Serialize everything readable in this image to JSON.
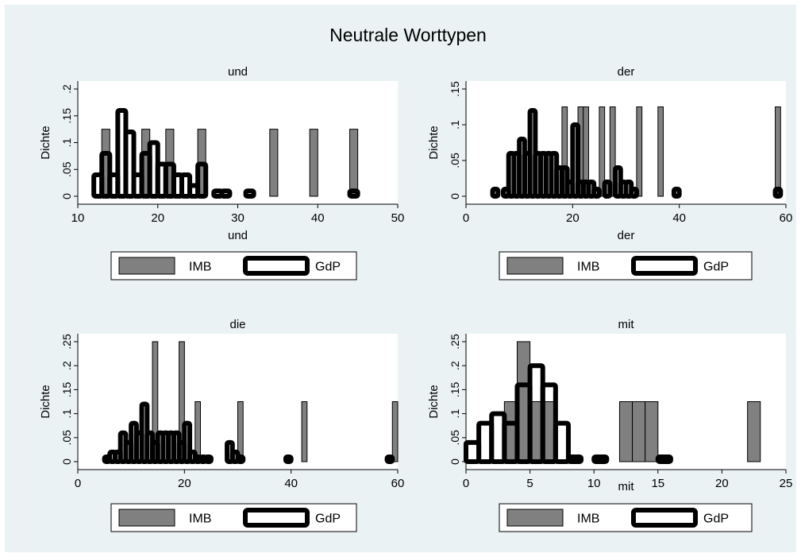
{
  "figure": {
    "title": "Neutrale Worttypen",
    "legend_labels": [
      "IMB",
      "GdP"
    ],
    "colors": {
      "background": "#eaf2f3",
      "plot_bg": "#ffffff",
      "imb_fill": "#808080",
      "gdp_stroke": "#000000"
    }
  },
  "chart_data": [
    {
      "type": "bar",
      "title": "und",
      "xlabel": "und",
      "ylabel": "Dichte",
      "xlim": [
        10,
        50
      ],
      "ylim": [
        0,
        0.2
      ],
      "x_ticks": [
        10,
        20,
        30,
        40,
        50
      ],
      "y_ticks": [
        0,
        0.05,
        0.1,
        0.15,
        0.2
      ],
      "x_tick_labels": [
        "10",
        "20",
        "30",
        "40",
        "50"
      ],
      "y_tick_labels": [
        "0",
        ".05",
        ".1",
        ".15",
        ".2"
      ],
      "bin_width": 1,
      "series": [
        {
          "name": "IMB",
          "x": [
            13.5,
            18.5,
            21.5,
            25.5,
            34.5,
            39.5,
            44.5
          ],
          "values": [
            0.125,
            0.125,
            0.125,
            0.125,
            0.125,
            0.125,
            0.125
          ]
        },
        {
          "name": "GdP",
          "x": [
            12.5,
            13.5,
            14.5,
            15.5,
            16.5,
            17.5,
            18.5,
            19.5,
            20.5,
            21.5,
            22.5,
            23.5,
            24.5,
            25.5,
            27.5,
            28.5,
            31.5,
            44.5
          ],
          "values": [
            0.04,
            0.08,
            0.04,
            0.16,
            0.12,
            0.04,
            0.08,
            0.1,
            0.06,
            0.06,
            0.04,
            0.04,
            0.02,
            0.06,
            0.01,
            0.01,
            0.01,
            0.01
          ]
        }
      ]
    },
    {
      "type": "bar",
      "title": "der",
      "xlabel": "der",
      "ylabel": "Dichte",
      "xlim": [
        0,
        60
      ],
      "ylim": [
        0,
        0.15
      ],
      "x_ticks": [
        0,
        20,
        40,
        60
      ],
      "y_ticks": [
        0,
        0.05,
        0.1,
        0.15
      ],
      "x_tick_labels": [
        "0",
        "20",
        "40",
        "60"
      ],
      "y_tick_labels": [
        "0",
        ".05",
        ".1",
        ".15"
      ],
      "bin_width": 1,
      "series": [
        {
          "name": "IMB",
          "x": [
            18.5,
            21.5,
            22.5,
            25.5,
            27.5,
            32.5,
            36.5,
            58.5
          ],
          "values": [
            0.125,
            0.125,
            0.125,
            0.125,
            0.125,
            0.125,
            0.125,
            0.125
          ]
        },
        {
          "name": "GdP",
          "x": [
            5.5,
            7.5,
            8.5,
            9.5,
            10.5,
            11.5,
            12.5,
            13.5,
            14.5,
            15.5,
            16.5,
            17.5,
            18.5,
            19.5,
            20.5,
            21.5,
            22.5,
            23.5,
            24.5,
            26.5,
            28.5,
            29.5,
            30.5,
            31.5,
            39.5,
            58.5
          ],
          "values": [
            0.01,
            0.01,
            0.06,
            0.06,
            0.08,
            0.06,
            0.12,
            0.06,
            0.06,
            0.06,
            0.06,
            0.04,
            0.04,
            0.02,
            0.1,
            0.02,
            0.02,
            0.02,
            0.01,
            0.02,
            0.04,
            0.02,
            0.02,
            0.01,
            0.01,
            0.01
          ]
        }
      ]
    },
    {
      "type": "bar",
      "title": "die",
      "xlabel": "",
      "ylabel": "Dichte",
      "xlim": [
        0,
        60
      ],
      "ylim": [
        0,
        0.25
      ],
      "x_ticks": [
        0,
        20,
        40,
        60
      ],
      "y_ticks": [
        0,
        0.05,
        0.1,
        0.15,
        0.2,
        0.25
      ],
      "x_tick_labels": [
        "0",
        "20",
        "40",
        "60"
      ],
      "y_tick_labels": [
        "0",
        ".05",
        ".1",
        ".15",
        ".2",
        ".25"
      ],
      "bin_width": 1,
      "series": [
        {
          "name": "IMB",
          "x": [
            14.5,
            19.5,
            22.5,
            30.5,
            42.5,
            59.5
          ],
          "values": [
            0.25,
            0.25,
            0.125,
            0.125,
            0.125,
            0.125
          ]
        },
        {
          "name": "GdP",
          "x": [
            5.5,
            6.5,
            7.5,
            8.5,
            9.5,
            10.5,
            11.5,
            12.5,
            13.5,
            14.5,
            15.5,
            16.5,
            17.5,
            18.5,
            19.5,
            20.5,
            21.5,
            22.5,
            23.5,
            24.5,
            28.5,
            29.5,
            30.5,
            39.5,
            58.5
          ],
          "values": [
            0.01,
            0.02,
            0.02,
            0.06,
            0.04,
            0.08,
            0.06,
            0.12,
            0.06,
            0.04,
            0.06,
            0.06,
            0.06,
            0.06,
            0.04,
            0.08,
            0.02,
            0.01,
            0.01,
            0.01,
            0.04,
            0.02,
            0.01,
            0.01,
            0.01
          ]
        }
      ]
    },
    {
      "type": "bar",
      "title": "mit",
      "xlabel": "mit",
      "ylabel": "Dichte",
      "xlim": [
        0,
        25
      ],
      "ylim": [
        0,
        0.25
      ],
      "x_ticks": [
        0,
        5,
        10,
        15,
        20,
        25
      ],
      "y_ticks": [
        0,
        0.05,
        0.1,
        0.15,
        0.2,
        0.25
      ],
      "x_tick_labels": [
        "0",
        "5",
        "10",
        "15",
        "20",
        "25"
      ],
      "y_tick_labels": [
        "0",
        ".05",
        ".1",
        ".15",
        ".2",
        ".25"
      ],
      "bin_width": 1,
      "series": [
        {
          "name": "IMB",
          "x": [
            3.5,
            4.5,
            5.5,
            6.5,
            12.5,
            13.5,
            14.5,
            22.5
          ],
          "values": [
            0.125,
            0.25,
            0.125,
            0.125,
            0.125,
            0.125,
            0.125,
            0.125
          ]
        },
        {
          "name": "GdP",
          "x": [
            0.5,
            1.5,
            2.5,
            3.5,
            4.5,
            5.5,
            6.5,
            7.5,
            8.5,
            10.5,
            15.5
          ],
          "values": [
            0.04,
            0.08,
            0.1,
            0.08,
            0.16,
            0.2,
            0.16,
            0.08,
            0.01,
            0.01,
            0.01
          ]
        }
      ]
    }
  ]
}
